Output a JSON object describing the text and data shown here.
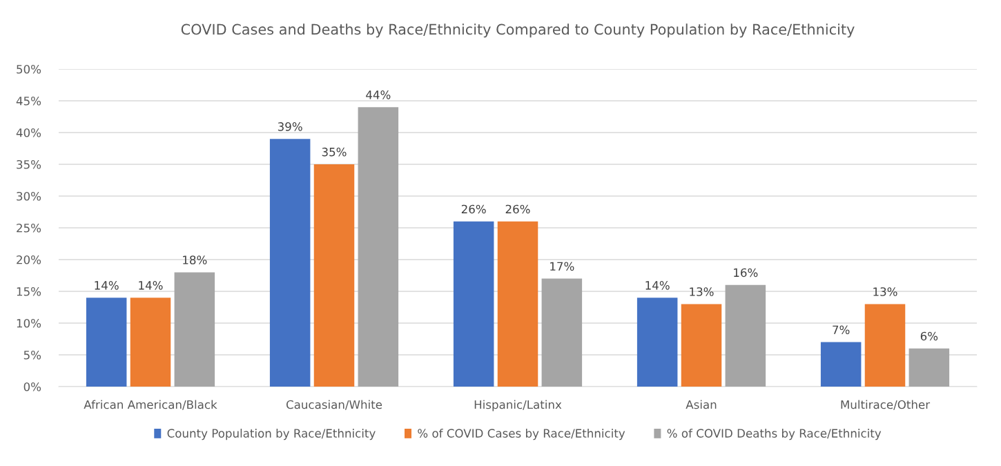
{
  "chart_data": {
    "type": "bar",
    "title": "COVID Cases and Deaths by Race/Ethnicity Compared to County Population by Race/Ethnicity",
    "categories": [
      "African American/Black",
      "Caucasian/White",
      "Hispanic/Latinx",
      "Asian",
      "Multirace/Other"
    ],
    "series": [
      {
        "name": "County Population by Race/Ethnicity",
        "color": "#4472c4",
        "values": [
          14,
          39,
          26,
          14,
          7
        ],
        "value_labels": [
          "14%",
          "39%",
          "26%",
          "14%",
          "7%"
        ]
      },
      {
        "name": "% of COVID Cases by Race/Ethnicity",
        "color": "#ed7d31",
        "values": [
          14,
          35,
          26,
          13,
          13
        ],
        "value_labels": [
          "14%",
          "35%",
          "26%",
          "13%",
          "13%"
        ]
      },
      {
        "name": "% of COVID Deaths by Race/Ethnicity",
        "color": "#a5a5a5",
        "values": [
          18,
          44,
          17,
          16,
          6
        ],
        "value_labels": [
          "18%",
          "44%",
          "17%",
          "16%",
          "6%"
        ]
      }
    ],
    "ylim": [
      0,
      50
    ],
    "yticks": [
      {
        "value": 0,
        "label": "0%"
      },
      {
        "value": 5,
        "label": "5%"
      },
      {
        "value": 10,
        "label": "10%"
      },
      {
        "value": 15,
        "label": "15%"
      },
      {
        "value": 20,
        "label": "20%"
      },
      {
        "value": 25,
        "label": "25%"
      },
      {
        "value": 30,
        "label": "30%"
      },
      {
        "value": 35,
        "label": "35%"
      },
      {
        "value": 40,
        "label": "40%"
      },
      {
        "value": 45,
        "label": "45%"
      },
      {
        "value": 50,
        "label": "50%"
      }
    ],
    "grid": "y",
    "legend": "bottom"
  }
}
